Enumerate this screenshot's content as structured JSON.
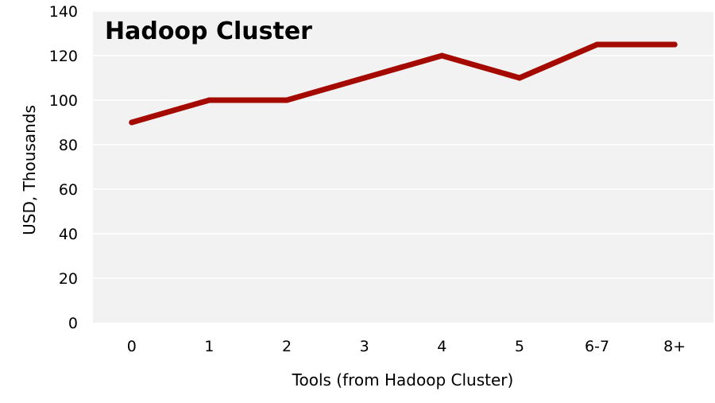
{
  "chart_data": {
    "type": "line",
    "title": "Hadoop Cluster",
    "xlabel": "Tools (from Hadoop Cluster)",
    "ylabel": "USD, Thousands",
    "categories": [
      "0",
      "1",
      "2",
      "3",
      "4",
      "5",
      "6-7",
      "8+"
    ],
    "series": [
      {
        "values": [
          90,
          100,
          100,
          110,
          120,
          110,
          125,
          125
        ]
      }
    ],
    "ylim": [
      0,
      140
    ],
    "yticks": [
      "0",
      "20",
      "40",
      "60",
      "80",
      "100",
      "120",
      "140"
    ],
    "grid": true,
    "legend": "none",
    "colors": {
      "line": "#a50a00",
      "plot_background": "#f2f2f2",
      "gridline": "#ffffff"
    }
  }
}
